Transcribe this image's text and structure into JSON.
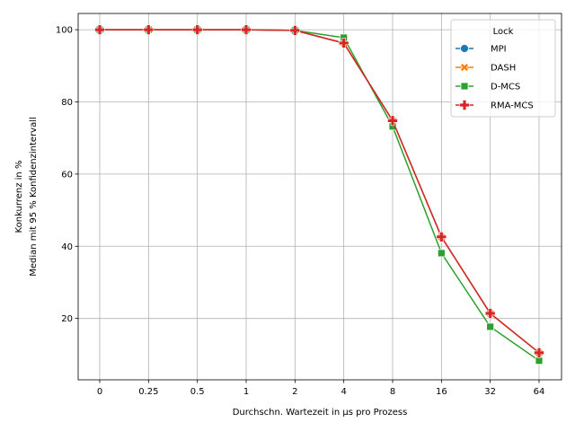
{
  "chart_data": {
    "type": "line",
    "categories": [
      "0",
      "0.25",
      "0.5",
      "1",
      "2",
      "4",
      "8",
      "16",
      "32",
      "64"
    ],
    "xlabel": "Durchschn. Wartezeit in µs pro Prozess",
    "ylabel_lines": [
      "Konkurrenz in %",
      "Median mit 95 % Konfidenzintervall"
    ],
    "ylim": [
      3,
      104.5
    ],
    "yticks": [
      20,
      40,
      60,
      80,
      100
    ],
    "grid": true,
    "legend": {
      "title": "Lock",
      "placement": "top-right"
    },
    "series": [
      {
        "name": "MPI",
        "color": "#1f77b4",
        "marker": "circle",
        "values": [
          100,
          100,
          100,
          100,
          99.8,
          96.3,
          74.8,
          42.6,
          21.4,
          10.5
        ]
      },
      {
        "name": "DASH",
        "color": "#ff7f0e",
        "marker": "x",
        "values": [
          100,
          100,
          100,
          100,
          99.8,
          96.3,
          74.8,
          42.6,
          21.4,
          10.5
        ]
      },
      {
        "name": "D-MCS",
        "color": "#2ca02c",
        "marker": "square",
        "values": [
          100,
          100,
          100,
          100,
          99.8,
          97.8,
          73.2,
          38.1,
          17.7,
          8.3
        ]
      },
      {
        "name": "RMA-MCS",
        "color": "#d62728",
        "marker": "plus",
        "values": [
          100,
          100,
          100,
          100,
          99.8,
          96.3,
          74.8,
          42.6,
          21.4,
          10.5
        ]
      }
    ]
  }
}
